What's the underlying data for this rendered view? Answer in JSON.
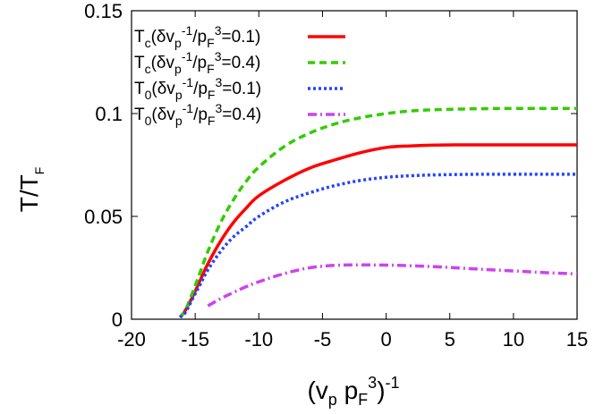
{
  "chart_data": {
    "type": "line",
    "title": "",
    "xlabel": {
      "base": "(v",
      "sub1": "p",
      "mid": " p",
      "sub2": "F",
      "sup1": "3",
      "close": ")",
      "sup2": "-1"
    },
    "ylabel": {
      "base": "T/T",
      "sub": "F"
    },
    "xlim": [
      -20,
      15
    ],
    "ylim": [
      0,
      0.15
    ],
    "xticks": [
      -20,
      -15,
      -10,
      -5,
      0,
      5,
      10,
      15
    ],
    "xtick_labels": [
      "-20",
      "-15",
      "-10",
      "-5",
      "0",
      "5",
      "10",
      "15"
    ],
    "yticks": [
      0,
      0.05,
      0.1,
      0.15
    ],
    "ytick_labels": [
      "0",
      "0.05",
      "0.1",
      "0.15"
    ],
    "legend_position": "top-left",
    "series": [
      {
        "name": "Tc(δvp-1/pF3=0.1)",
        "label": {
          "sym": "T",
          "symsub": "c",
          "a": "(δv",
          "asub": "p",
          "asup": "-1",
          "b": "/p",
          "bsub": "F",
          "bsup": "3",
          "c": "=0.1)"
        },
        "color": "#ff0000",
        "dash": "solid",
        "x": [
          -16.2,
          -15.8,
          -15.2,
          -14.6,
          -14.0,
          -13.0,
          -12.0,
          -11.0,
          -10.0,
          -8.0,
          -6.0,
          -4.0,
          -2.0,
          0.0,
          2.0,
          4.0,
          6.0,
          8.0,
          10.0,
          12.0,
          15.0
        ],
        "y": [
          0.001,
          0.004,
          0.011,
          0.019,
          0.027,
          0.038,
          0.047,
          0.054,
          0.06,
          0.0675,
          0.0735,
          0.0775,
          0.081,
          0.0835,
          0.0843,
          0.0847,
          0.0848,
          0.0848,
          0.0848,
          0.0848,
          0.0848
        ]
      },
      {
        "name": "Tc(δvp-1/pF3=0.4)",
        "label": {
          "sym": "T",
          "symsub": "c",
          "a": "(δv",
          "asub": "p",
          "asup": "-1",
          "b": "/p",
          "bsub": "F",
          "bsup": "3",
          "c": "=0.4)"
        },
        "color": "#33cc00",
        "dash": "8,5",
        "x": [
          -16.2,
          -15.8,
          -15.2,
          -14.6,
          -14.0,
          -13.0,
          -12.0,
          -11.0,
          -10.0,
          -8.0,
          -6.0,
          -4.0,
          -2.0,
          0.0,
          2.0,
          4.0,
          6.0,
          8.0,
          10.0,
          12.0,
          15.0
        ],
        "y": [
          0.001,
          0.004,
          0.013,
          0.023,
          0.033,
          0.047,
          0.058,
          0.067,
          0.074,
          0.084,
          0.0905,
          0.095,
          0.098,
          0.1,
          0.1013,
          0.1019,
          0.1022,
          0.1024,
          0.1025,
          0.1025,
          0.1025
        ]
      },
      {
        "name": "T0(δvp-1/pF3=0.1)",
        "label": {
          "sym": "T",
          "symsub": "0",
          "a": "(δv",
          "asub": "p",
          "asup": "-1",
          "b": "/p",
          "bsub": "F",
          "bsup": "3",
          "c": "=0.1)"
        },
        "color": "#2244ff",
        "dash": "3,3",
        "x": [
          -16.2,
          -15.8,
          -15.2,
          -14.6,
          -14.0,
          -13.0,
          -12.0,
          -11.0,
          -10.0,
          -8.0,
          -6.0,
          -4.0,
          -2.0,
          0.0,
          2.0,
          4.0,
          6.0,
          8.0,
          10.0,
          12.0,
          15.0
        ],
        "y": [
          0.001,
          0.003,
          0.01,
          0.017,
          0.024,
          0.033,
          0.04,
          0.045,
          0.05,
          0.057,
          0.0615,
          0.065,
          0.0675,
          0.069,
          0.0698,
          0.0702,
          0.0704,
          0.0705,
          0.0705,
          0.0705,
          0.0705
        ]
      },
      {
        "name": "T0(δvp-1/pF3=0.4)",
        "label": {
          "sym": "T",
          "symsub": "0",
          "a": "(δv",
          "asub": "p",
          "asup": "-1",
          "b": "/p",
          "bsub": "F",
          "bsup": "3",
          "c": "=0.4)"
        },
        "color": "#cc44ee",
        "dash": "10,4,2,4",
        "x": [
          -14.0,
          -13.0,
          -12.0,
          -11.0,
          -10.0,
          -8.0,
          -6.0,
          -4.0,
          -2.0,
          0.0,
          2.0,
          4.0,
          6.0,
          8.0,
          10.0,
          12.0,
          15.0
        ],
        "y": [
          0.0065,
          0.01,
          0.013,
          0.0158,
          0.0182,
          0.0222,
          0.025,
          0.0262,
          0.0264,
          0.0263,
          0.026,
          0.0255,
          0.0248,
          0.0241,
          0.0235,
          0.0228,
          0.022
        ]
      }
    ]
  }
}
